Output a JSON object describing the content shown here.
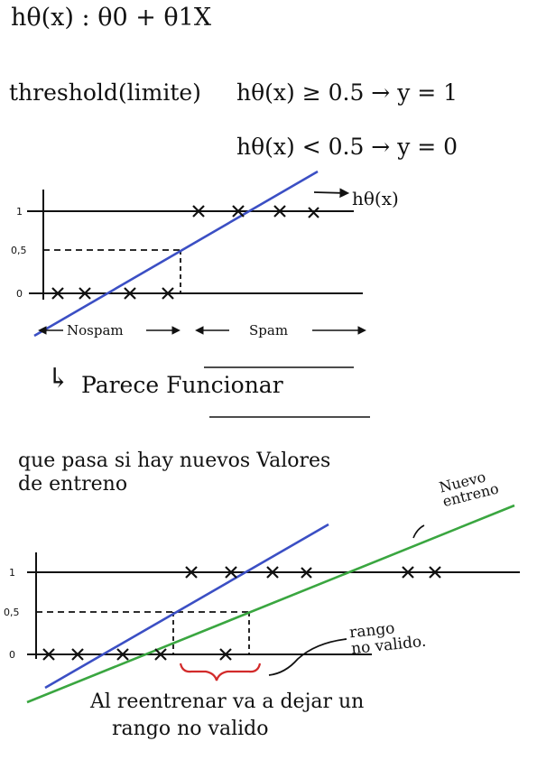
{
  "title_formula": "hθ(x) : θ0 + θ1X",
  "threshold": {
    "label": "threshold(limite)",
    "condition_1": "hθ(x) ≥ 0.5 → y = 1",
    "condition_2": "hθ(x) < 0.5 → y = 0"
  },
  "graph_1": {
    "line_label": "hθ(x)",
    "y_ticks": [
      "1",
      "0,5",
      "0"
    ],
    "region_left": "Nospam",
    "region_right": "Spam",
    "colors": {
      "hypothesis": "#3b4fc4"
    }
  },
  "conclusion_1": "Parece Funcionar",
  "question": {
    "line_1": "que pasa si hay nuevos Valores",
    "line_2": "de entreno"
  },
  "graph_2": {
    "y_ticks": [
      "1",
      "0,5",
      "0"
    ],
    "new_line_label_1": "Nuevo",
    "new_line_label_2": "entreno",
    "range_label_1": "rango",
    "range_label_2": "no valido.",
    "colors": {
      "old": "#3b4fc4",
      "new": "#3aa640",
      "range": "#d22a2a"
    }
  },
  "conclusion_2": {
    "line_1": "Al reentrenar va a dejar un",
    "line_2": "rango no valido"
  }
}
